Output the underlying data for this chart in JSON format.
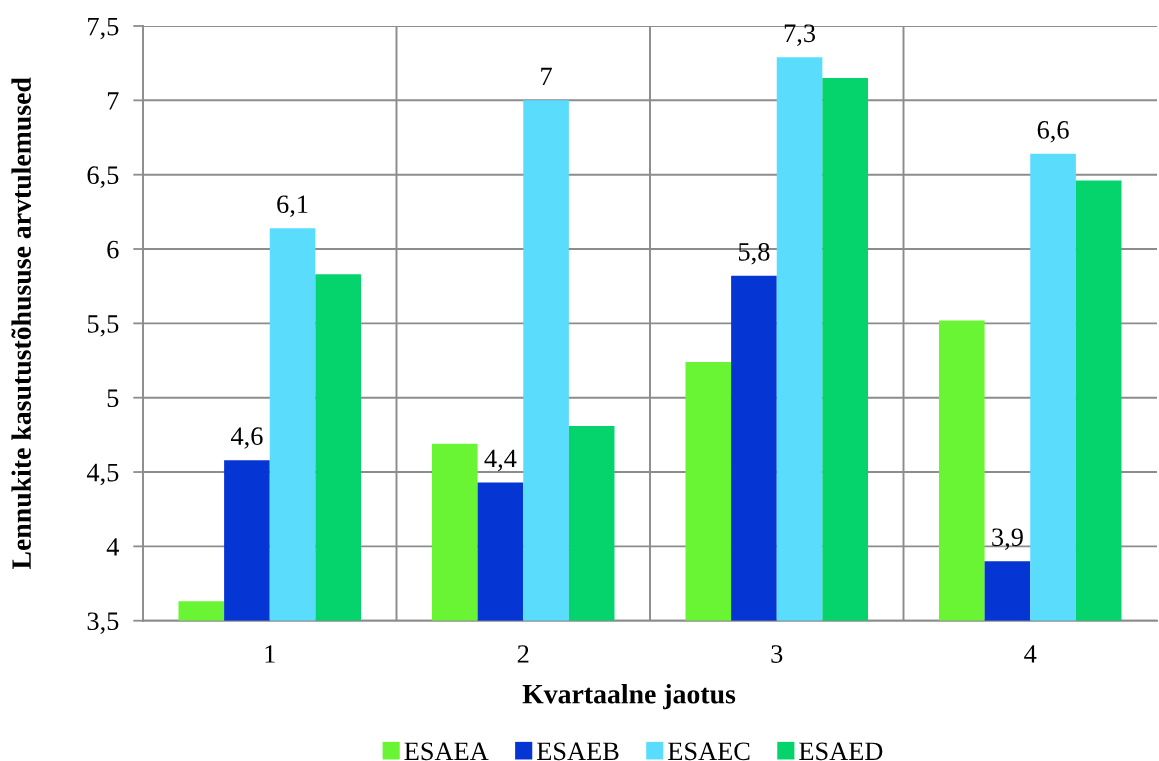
{
  "chart_data": {
    "type": "bar",
    "xlabel": "Kvartaalne jaotus",
    "ylabel": "Lennukite kasutustõhususe arvtulemused",
    "categories": [
      "1",
      "2",
      "3",
      "4"
    ],
    "series": [
      {
        "name": "ESAEA",
        "color": "#6af534",
        "values": [
          3.63,
          4.69,
          5.24,
          5.52
        ]
      },
      {
        "name": "ESAEB",
        "color": "#0535d2",
        "values": [
          4.58,
          4.43,
          5.82,
          3.9
        ],
        "value_labels": [
          "4,6",
          "4,4",
          "5,8",
          "3,9"
        ]
      },
      {
        "name": "ESAEC",
        "color": "#5adcfd",
        "values": [
          6.14,
          7.0,
          7.29,
          6.64
        ],
        "value_labels": [
          "6,1",
          "7",
          "7,3",
          "6,6"
        ]
      },
      {
        "name": "ESAED",
        "color": "#05d36b",
        "values": [
          5.83,
          4.81,
          7.15,
          6.46
        ]
      }
    ],
    "ylim": [
      3.5,
      7.5
    ],
    "yticks": [
      {
        "value": 3.5,
        "label": "3,5"
      },
      4,
      {
        "value": 4.5,
        "label": "4,5"
      },
      5,
      {
        "value": 5.5,
        "label": "5,5"
      },
      6,
      {
        "value": 6.5,
        "label": "6,5"
      },
      7,
      {
        "value": 7.5,
        "label": "7,5"
      }
    ],
    "grid": true,
    "legend": "bottom"
  }
}
